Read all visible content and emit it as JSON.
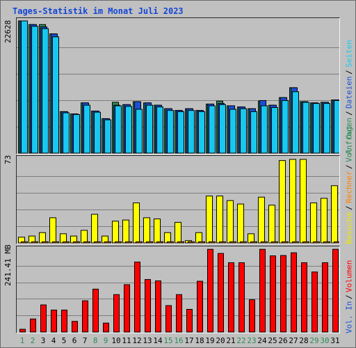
{
  "title": "Tages-Statistik im Monat Juli 2023",
  "colors": {
    "anfragen": "#2e8b57",
    "dateien": "#1a4fd6",
    "seiten": "#18c8f0",
    "besuche": "#ffff00",
    "rechner": "#ff8000",
    "volumen": "#ff0000",
    "vol_in": "#1a4fd6",
    "vol_out": "#2e8b57",
    "weekend_label": "#2e8b57",
    "weekday_label": "#000000"
  },
  "legends": {
    "top": [
      "Anfragen",
      "Dateien",
      "Seiten"
    ],
    "middle": [
      "Besuche",
      "Rechner",
      "Vol. Out"
    ],
    "bottom": [
      "Vol. In",
      "Volumen"
    ]
  },
  "chart_data": [
    {
      "type": "bar",
      "categories": [
        "1",
        "2",
        "3",
        "4",
        "5",
        "6",
        "7",
        "8",
        "9",
        "10",
        "11",
        "12",
        "13",
        "14",
        "15",
        "16",
        "17",
        "18",
        "19",
        "20",
        "21",
        "22",
        "23",
        "24",
        "25",
        "26",
        "27",
        "28",
        "29",
        "30",
        "31"
      ],
      "weekend_days": [
        "1",
        "2",
        "8",
        "9",
        "15",
        "16",
        "22",
        "23",
        "29",
        "30"
      ],
      "ymax_label": "22628",
      "ylim": [
        0,
        22628
      ],
      "series": [
        {
          "name": "Anfragen",
          "values": [
            22628,
            22000,
            22000,
            20400,
            7100,
            6700,
            8600,
            7200,
            5900,
            8700,
            8300,
            8800,
            8600,
            8200,
            7600,
            7300,
            7600,
            7300,
            8400,
            8900,
            8100,
            7900,
            7600,
            8900,
            8200,
            9500,
            11200,
            8800,
            8600,
            8700,
            9100
          ]
        },
        {
          "name": "Dateien",
          "values": [
            22628,
            22000,
            21600,
            20400,
            7100,
            6700,
            8600,
            7200,
            5900,
            8200,
            8300,
            8800,
            8600,
            8200,
            7600,
            7300,
            7600,
            7300,
            8400,
            8500,
            8100,
            7900,
            7600,
            9000,
            8200,
            9500,
            11200,
            8800,
            8600,
            8700,
            9100
          ]
        },
        {
          "name": "Seiten",
          "values": [
            22628,
            21700,
            21300,
            19900,
            6900,
            6600,
            8200,
            7000,
            5700,
            8100,
            8000,
            7500,
            8200,
            7900,
            7300,
            7100,
            7300,
            7100,
            8100,
            8300,
            7500,
            7600,
            7100,
            8100,
            7800,
            9000,
            10500,
            8700,
            8500,
            8500,
            9000
          ]
        }
      ]
    },
    {
      "type": "bar",
      "categories": [
        "1",
        "2",
        "3",
        "4",
        "5",
        "6",
        "7",
        "8",
        "9",
        "10",
        "11",
        "12",
        "13",
        "14",
        "15",
        "16",
        "17",
        "18",
        "19",
        "20",
        "21",
        "22",
        "23",
        "24",
        "25",
        "26",
        "27",
        "28",
        "29",
        "30",
        "31"
      ],
      "ymax_label": "73",
      "ylim": [
        0,
        73
      ],
      "series": [
        {
          "name": "Besuche",
          "values": [
            5,
            6,
            9,
            22,
            8,
            6,
            11,
            25,
            6,
            19,
            20,
            35,
            22,
            21,
            9,
            18,
            2,
            9,
            41,
            41,
            37,
            34,
            8,
            40,
            33,
            72,
            73,
            73,
            35,
            39,
            50
          ]
        },
        {
          "name": "Rechner",
          "values": [
            1,
            1,
            1,
            1,
            1,
            1,
            1,
            1,
            1,
            1,
            1,
            1,
            1,
            1,
            1,
            1,
            1,
            1,
            1,
            1,
            1,
            1,
            1,
            1,
            1,
            1,
            1,
            1,
            1,
            1,
            1
          ]
        }
      ]
    },
    {
      "type": "bar",
      "categories": [
        "1",
        "2",
        "3",
        "4",
        "5",
        "6",
        "7",
        "8",
        "9",
        "10",
        "11",
        "12",
        "13",
        "14",
        "15",
        "16",
        "17",
        "18",
        "19",
        "20",
        "21",
        "22",
        "23",
        "24",
        "25",
        "26",
        "27",
        "28",
        "29",
        "30",
        "31"
      ],
      "ymax_label": "241.41 MB",
      "ylim": [
        0,
        241.41
      ],
      "series": [
        {
          "name": "Volumen",
          "values": [
            8,
            38,
            79,
            64,
            64,
            31,
            91,
            125,
            26,
            109,
            138,
            204,
            153,
            149,
            77,
            109,
            66,
            148,
            241,
            229,
            202,
            202,
            94,
            241,
            222,
            223,
            231,
            202,
            175,
            202,
            241
          ]
        }
      ]
    }
  ]
}
